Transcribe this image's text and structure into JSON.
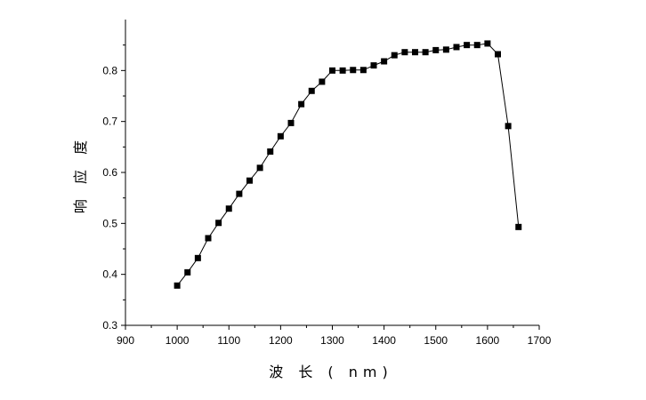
{
  "chart_data": {
    "type": "line",
    "xlabel": "波 长 ( nm)",
    "ylabel": "响 应 度",
    "xlim": [
      900,
      1700
    ],
    "ylim": [
      0.3,
      0.9
    ],
    "xticks": [
      "900",
      "1000",
      "1100",
      "1200",
      "1300",
      "1400",
      "1500",
      "1600",
      "1700"
    ],
    "yticks": [
      "0.3",
      "0.4",
      "0.5",
      "0.6",
      "0.7",
      "0.8"
    ],
    "grid": false,
    "marker": "square",
    "series": [
      {
        "color": "#000000",
        "x": [
          1000,
          1020,
          1040,
          1060,
          1080,
          1100,
          1120,
          1140,
          1160,
          1180,
          1200,
          1220,
          1240,
          1260,
          1280,
          1300,
          1320,
          1340,
          1360,
          1380,
          1400,
          1420,
          1440,
          1460,
          1480,
          1500,
          1520,
          1540,
          1560,
          1580,
          1600,
          1620,
          1640,
          1660
        ],
        "y": [
          0.378,
          0.404,
          0.432,
          0.471,
          0.501,
          0.529,
          0.558,
          0.584,
          0.609,
          0.641,
          0.671,
          0.697,
          0.734,
          0.76,
          0.778,
          0.8,
          0.8,
          0.801,
          0.801,
          0.81,
          0.818,
          0.83,
          0.836,
          0.836,
          0.836,
          0.84,
          0.841,
          0.846,
          0.85,
          0.85,
          0.853,
          0.832,
          0.691,
          0.493
        ]
      }
    ]
  }
}
